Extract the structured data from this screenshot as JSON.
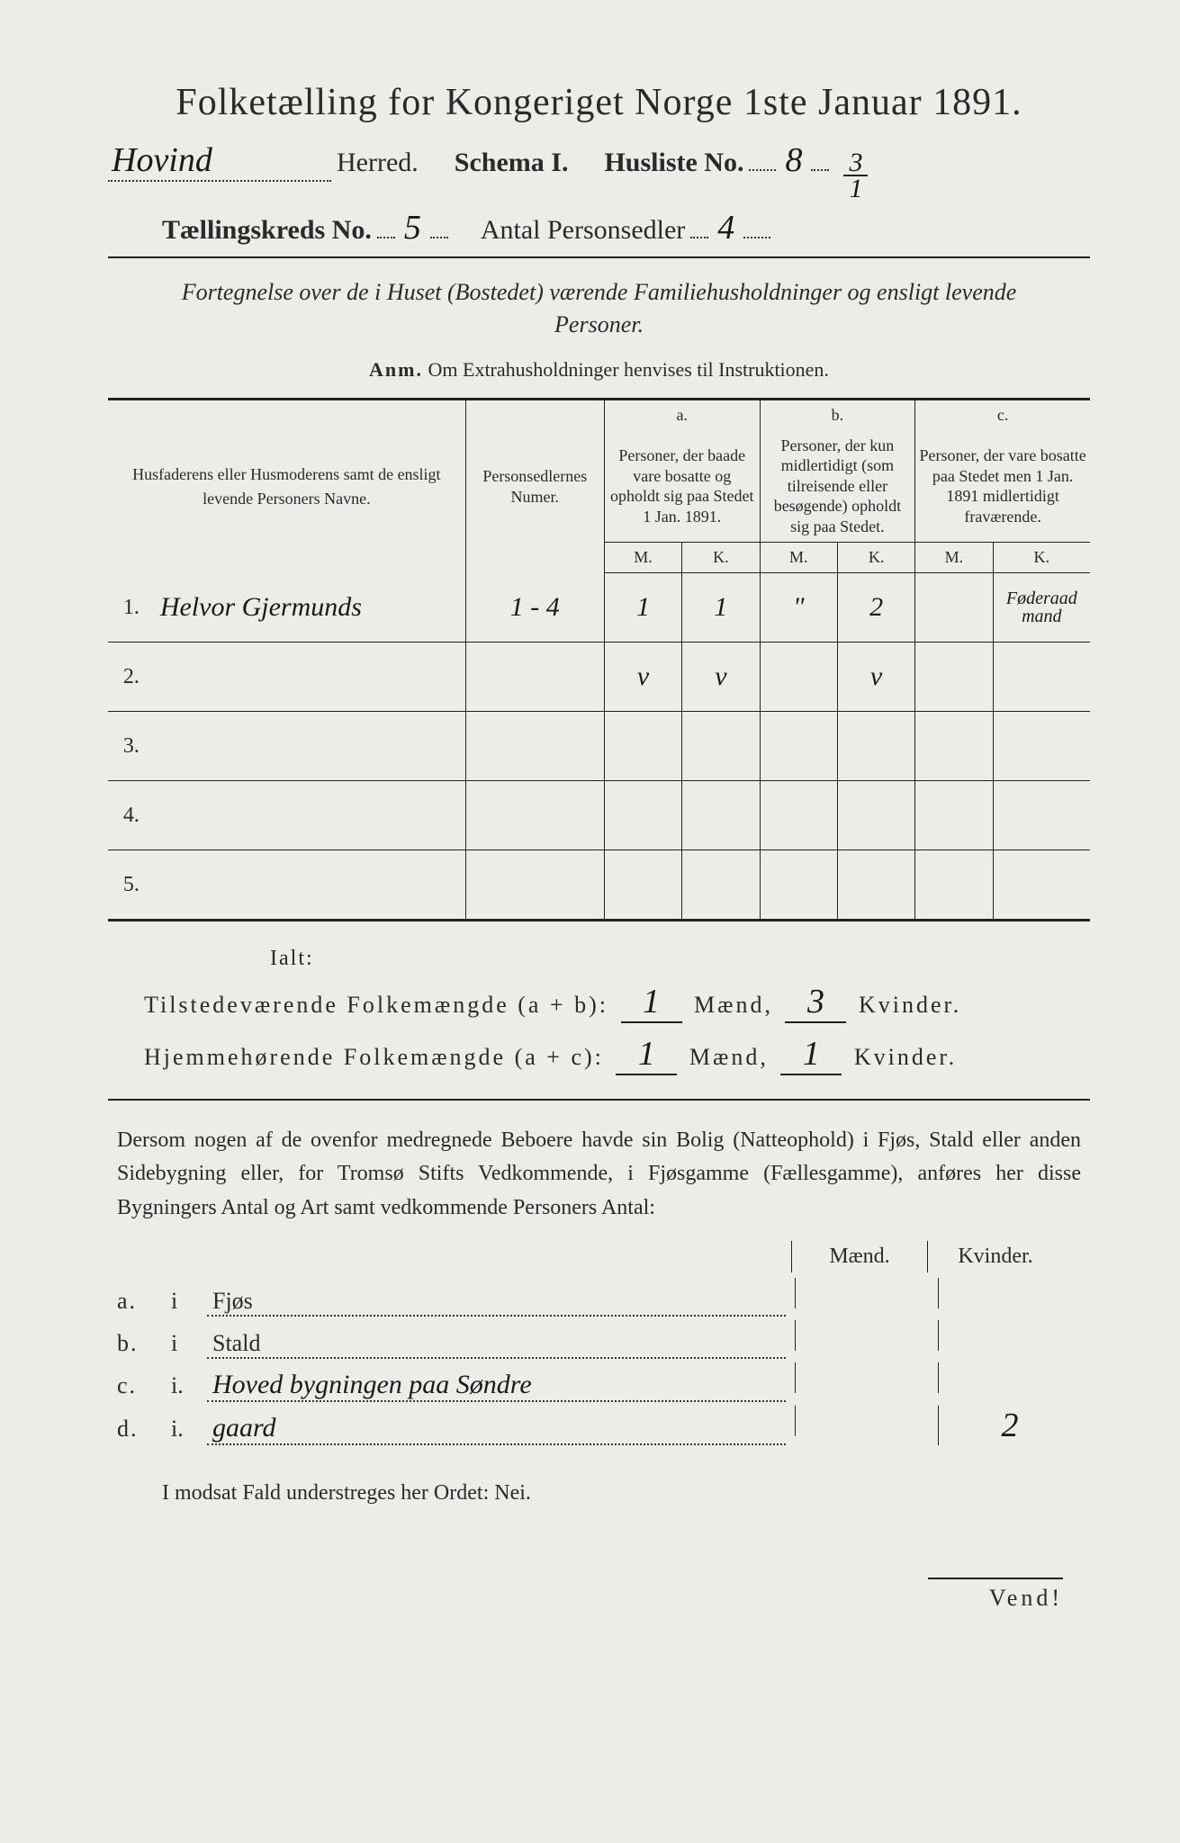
{
  "title": "Folketælling for Kongeriget Norge 1ste Januar 1891.",
  "header": {
    "herred_hw": "Hovind",
    "herred_label": "Herred.",
    "schema_label": "Schema I.",
    "husliste_label": "Husliste No.",
    "husliste_no": "8",
    "frac_top": "3",
    "frac_bot": "1",
    "kreds_label": "Tællingskreds No.",
    "kreds_no": "5",
    "sedler_label": "Antal Personsedler",
    "sedler_no": "4"
  },
  "subtitle": "Fortegnelse over de i Huset (Bostedet) værende Familiehusholdninger og ensligt levende Personer.",
  "anm_label": "Anm.",
  "anm_text": "Om Extrahusholdninger henvises til Instruktionen.",
  "table": {
    "col_name": "Husfaderens eller Husmoderens samt de ensligt levende Personers Navne.",
    "col_num": "Personsedlernes Numer.",
    "a_letter": "a.",
    "a_desc": "Personer, der baade vare bosatte og opholdt sig paa Stedet 1 Jan. 1891.",
    "b_letter": "b.",
    "b_desc": "Personer, der kun midlertidigt (som tilreisende eller besøgende) opholdt sig paa Stedet.",
    "c_letter": "c.",
    "c_desc": "Personer, der vare bosatte paa Stedet men 1 Jan. 1891 midlertidigt fraværende.",
    "M": "M.",
    "K": "K.",
    "rows": [
      {
        "n": "1.",
        "name": "Helvor Gjermunds",
        "num": "1 - 4",
        "aM": "1",
        "aK": "1",
        "bM": "\"",
        "bK": "2",
        "cM": "",
        "cK": "Føderaad mand"
      },
      {
        "n": "2.",
        "name": "",
        "num": "",
        "aM": "v",
        "aK": "v",
        "bM": "",
        "bK": "v",
        "cM": "",
        "cK": ""
      },
      {
        "n": "3.",
        "name": "",
        "num": "",
        "aM": "",
        "aK": "",
        "bM": "",
        "bK": "",
        "cM": "",
        "cK": ""
      },
      {
        "n": "4.",
        "name": "",
        "num": "",
        "aM": "",
        "aK": "",
        "bM": "",
        "bK": "",
        "cM": "",
        "cK": ""
      },
      {
        "n": "5.",
        "name": "",
        "num": "",
        "aM": "",
        "aK": "",
        "bM": "",
        "bK": "",
        "cM": "",
        "cK": ""
      }
    ]
  },
  "ialt": "Ialt:",
  "sum1_label": "Tilstedeværende Folkemængde (a + b):",
  "sum1_m": "1",
  "sum1_k": "3",
  "sum2_label": "Hjemmehørende Folkemængde (a + c):",
  "sum2_m": "1",
  "sum2_k": "1",
  "maend": "Mænd,",
  "kvinder": "Kvinder.",
  "para": "Dersom nogen af de ovenfor medregnede Beboere havde sin Bolig (Natteophold) i Fjøs, Stald eller anden Sidebygning eller, for Tromsø Stifts Vedkommende, i Fjøsgamme (Fællesgamme), anføres her disse Bygningers Antal og Art samt vedkommende Personers Antal:",
  "mk": {
    "m": "Mænd.",
    "k": "Kvinder."
  },
  "loc": [
    {
      "l": "a.",
      "i": "i",
      "p": "Fjøs",
      "m": "",
      "k": ""
    },
    {
      "l": "b.",
      "i": "i",
      "p": "Stald",
      "m": "",
      "k": ""
    },
    {
      "l": "c.",
      "i": "i.",
      "p": "Hoved bygningen paa Søndre",
      "m": "",
      "k": ""
    },
    {
      "l": "d.",
      "i": "i.",
      "p": "gaard",
      "m": "",
      "k": "2"
    }
  ],
  "nei": "I modsat Fald understreges her Ordet: Nei.",
  "vend": "Vend!"
}
